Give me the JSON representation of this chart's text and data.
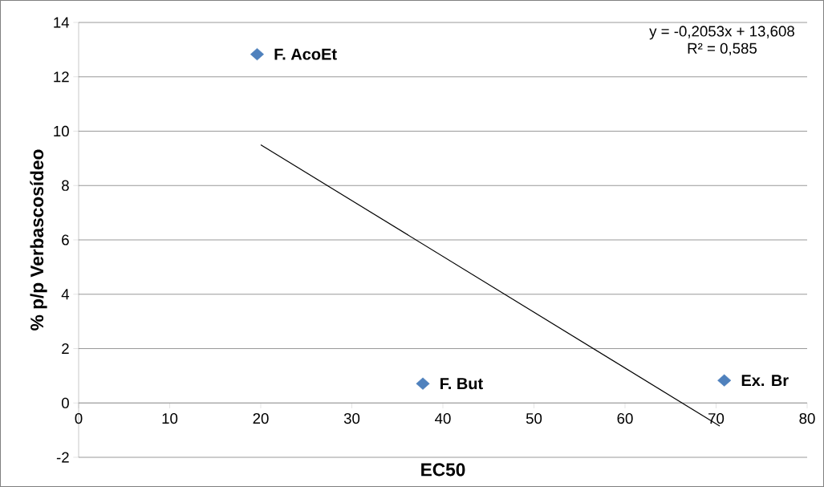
{
  "chart_data": {
    "type": "scatter",
    "xlabel": "EC50",
    "ylabel": "% p/p Verbascosídeo",
    "series": [
      {
        "color": "#4f81bd",
        "marker": "diamond",
        "x": [
          19.6,
          37.8,
          70.9
        ],
        "values": [
          12.83,
          0.71,
          0.83
        ]
      },
      {
        "type": "line",
        "color": "#000000",
        "marker": "none",
        "line_style": "solid",
        "x": [
          20,
          70.4
        ],
        "values": [
          9.5,
          -0.85
        ]
      }
    ],
    "annotations": [
      {
        "text": "F. AcoEt",
        "x": 19.6,
        "y": 12.83
      },
      {
        "text": "F. But",
        "x": 37.8,
        "y": 0.71
      },
      {
        "text": "Ex. Br",
        "x": 70.9,
        "y": 0.83
      },
      "y = -0,2053x + 13,608",
      "R² = 0,585"
    ],
    "xlim": [
      0,
      80
    ],
    "ylim": [
      -2,
      14
    ],
    "xticks": [
      0,
      10,
      20,
      30,
      40,
      50,
      60,
      70,
      80
    ],
    "yticks": [
      -2,
      0,
      2,
      4,
      6,
      8,
      10,
      12,
      14
    ],
    "grid": "y"
  }
}
